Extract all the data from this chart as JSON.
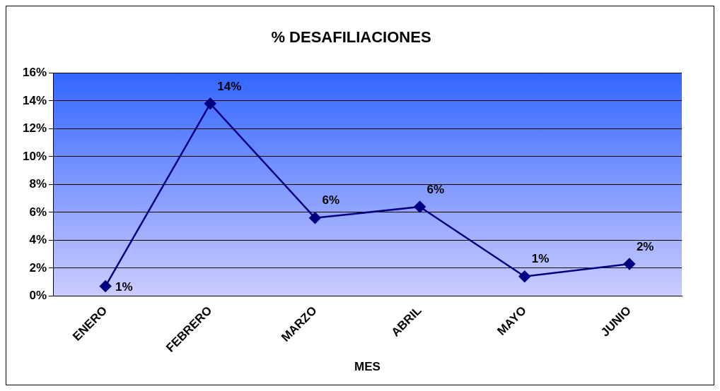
{
  "chart_data": {
    "type": "line",
    "title": "% DESAFILIACIONES",
    "xlabel": "MES",
    "categories": [
      "ENERO",
      "FEBRERO",
      "MARZO",
      "ABRIL",
      "MAYO",
      "JUNIO"
    ],
    "series": [
      {
        "color": "#000080",
        "values": [
          0.7,
          13.8,
          5.6,
          6.4,
          1.4,
          2.3
        ],
        "value_labels": [
          "1%",
          "14%",
          "6%",
          "6%",
          "1%",
          "2%"
        ]
      }
    ],
    "ylim": [
      0,
      16
    ],
    "yticks": [
      {
        "value": 0,
        "label": "0%"
      },
      {
        "value": 2,
        "label": "2%"
      },
      {
        "value": 4,
        "label": "4%"
      },
      {
        "value": 6,
        "label": "6%"
      },
      {
        "value": 8,
        "label": "8%"
      },
      {
        "value": 10,
        "label": "10%"
      },
      {
        "value": 12,
        "label": "12%"
      },
      {
        "value": 14,
        "label": "14%"
      },
      {
        "value": 16,
        "label": "16%"
      }
    ],
    "grid": "y",
    "legend": false,
    "marker": "diamond",
    "line_style": "solid"
  }
}
